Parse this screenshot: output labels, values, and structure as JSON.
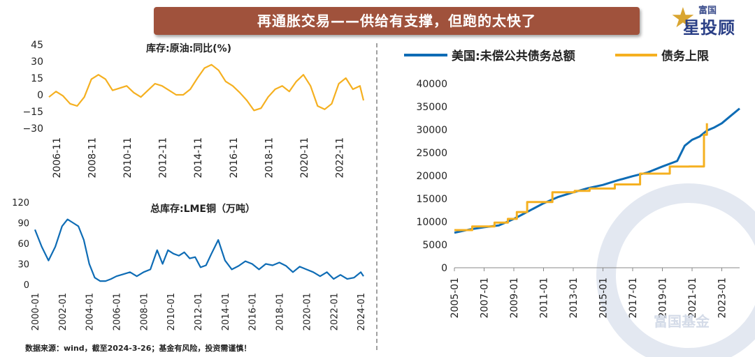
{
  "header": {
    "title": "再通胀交易——供给有支撑，但跑的太快了"
  },
  "logo": {
    "top": "富国",
    "main": "星投顾"
  },
  "footer": {
    "source": "数据来源：wind，截至2024-3-26；基金有风险，投资需谨慎！"
  },
  "watermark": {
    "text": "富国基金"
  },
  "colors": {
    "banner": "#a0523c",
    "orange": "#f5b020",
    "blue": "#0e6cb5"
  },
  "chart_data": [
    {
      "type": "line",
      "title": "库存:原油:同比(%)",
      "ylim": [
        -30,
        45
      ],
      "yticks": [
        "45",
        "30",
        "15",
        "0",
        "−15",
        "−30"
      ],
      "xticks": [
        "2006-11",
        "2008-11",
        "2010-11",
        "2012-11",
        "2014-11",
        "2016-11",
        "2018-11",
        "2020-11",
        "2022-11"
      ],
      "xlim": [
        2006.4,
        2024.2
      ],
      "series": [
        {
          "color": "#f5b020",
          "points": [
            [
              2006.4,
              -2
            ],
            [
              2006.8,
              3
            ],
            [
              2007.2,
              -1
            ],
            [
              2007.6,
              -8
            ],
            [
              2008.0,
              -10
            ],
            [
              2008.4,
              -2
            ],
            [
              2008.8,
              14
            ],
            [
              2009.2,
              18
            ],
            [
              2009.6,
              14
            ],
            [
              2010.0,
              4
            ],
            [
              2010.4,
              6
            ],
            [
              2010.8,
              8
            ],
            [
              2011.2,
              2
            ],
            [
              2011.6,
              -2
            ],
            [
              2012.0,
              4
            ],
            [
              2012.4,
              10
            ],
            [
              2012.8,
              8
            ],
            [
              2013.2,
              4
            ],
            [
              2013.6,
              0
            ],
            [
              2014.0,
              0
            ],
            [
              2014.4,
              5
            ],
            [
              2014.8,
              15
            ],
            [
              2015.2,
              24
            ],
            [
              2015.6,
              27
            ],
            [
              2016.0,
              22
            ],
            [
              2016.4,
              12
            ],
            [
              2016.8,
              8
            ],
            [
              2017.2,
              2
            ],
            [
              2017.6,
              -5
            ],
            [
              2018.0,
              -14
            ],
            [
              2018.4,
              -12
            ],
            [
              2018.8,
              -2
            ],
            [
              2019.2,
              5
            ],
            [
              2019.6,
              8
            ],
            [
              2020.0,
              3
            ],
            [
              2020.4,
              12
            ],
            [
              2020.8,
              18
            ],
            [
              2021.2,
              8
            ],
            [
              2021.6,
              -10
            ],
            [
              2022.0,
              -13
            ],
            [
              2022.4,
              -8
            ],
            [
              2022.8,
              10
            ],
            [
              2023.2,
              15
            ],
            [
              2023.6,
              5
            ],
            [
              2024.0,
              8
            ],
            [
              2024.2,
              -5
            ]
          ]
        }
      ]
    },
    {
      "type": "line",
      "title": "总库存:LME铜（万吨）",
      "ylim": [
        0,
        120
      ],
      "yticks": [
        "120",
        "90",
        "60",
        "30",
        "0"
      ],
      "xticks": [
        "2000-01",
        "2002-01",
        "2004-01",
        "2006-01",
        "2008-01",
        "2010-01",
        "2012-01",
        "2014-01",
        "2016-01",
        "2018-01",
        "2020-01",
        "2022-01",
        "2024-01"
      ],
      "xlim": [
        2000.0,
        2024.2
      ],
      "series": [
        {
          "color": "#0e6cb5",
          "points": [
            [
              2000.0,
              80
            ],
            [
              2000.5,
              55
            ],
            [
              2001.0,
              35
            ],
            [
              2001.5,
              55
            ],
            [
              2002.0,
              85
            ],
            [
              2002.4,
              95
            ],
            [
              2002.8,
              90
            ],
            [
              2003.2,
              85
            ],
            [
              2003.6,
              65
            ],
            [
              2004.0,
              30
            ],
            [
              2004.4,
              10
            ],
            [
              2004.8,
              5
            ],
            [
              2005.2,
              5
            ],
            [
              2005.6,
              8
            ],
            [
              2006.0,
              12
            ],
            [
              2006.5,
              15
            ],
            [
              2007.0,
              18
            ],
            [
              2007.5,
              12
            ],
            [
              2008.0,
              18
            ],
            [
              2008.5,
              22
            ],
            [
              2009.0,
              50
            ],
            [
              2009.4,
              30
            ],
            [
              2009.8,
              50
            ],
            [
              2010.2,
              45
            ],
            [
              2010.6,
              42
            ],
            [
              2011.0,
              47
            ],
            [
              2011.4,
              38
            ],
            [
              2011.8,
              40
            ],
            [
              2012.2,
              25
            ],
            [
              2012.6,
              28
            ],
            [
              2013.0,
              45
            ],
            [
              2013.5,
              65
            ],
            [
              2014.0,
              35
            ],
            [
              2014.5,
              22
            ],
            [
              2015.0,
              27
            ],
            [
              2015.5,
              34
            ],
            [
              2016.0,
              30
            ],
            [
              2016.5,
              22
            ],
            [
              2017.0,
              30
            ],
            [
              2017.5,
              28
            ],
            [
              2018.0,
              32
            ],
            [
              2018.5,
              27
            ],
            [
              2019.0,
              18
            ],
            [
              2019.5,
              26
            ],
            [
              2020.0,
              22
            ],
            [
              2020.5,
              18
            ],
            [
              2021.0,
              12
            ],
            [
              2021.5,
              18
            ],
            [
              2022.0,
              8
            ],
            [
              2022.5,
              14
            ],
            [
              2023.0,
              8
            ],
            [
              2023.5,
              10
            ],
            [
              2024.0,
              18
            ],
            [
              2024.2,
              12
            ]
          ]
        }
      ]
    },
    {
      "type": "line",
      "yticks": [
        "40000",
        "35000",
        "30000",
        "25000",
        "20000",
        "15000",
        "10000",
        "5000",
        "0"
      ],
      "ylim": [
        0,
        40000
      ],
      "xticks": [
        "2005-01",
        "2007-01",
        "2009-01",
        "2011-01",
        "2013-01",
        "2015-01",
        "2017-01",
        "2019-01",
        "2021-01",
        "2023-01"
      ],
      "xlim": [
        2005.0,
        2024.2
      ],
      "legend": "top",
      "series": [
        {
          "name": "美国:未偿公共债务总额",
          "color": "#0e6cb5",
          "points": [
            [
              2005.0,
              7600
            ],
            [
              2006.0,
              8300
            ],
            [
              2007.0,
              8800
            ],
            [
              2008.0,
              9200
            ],
            [
              2009.0,
              10600
            ],
            [
              2010.0,
              12300
            ],
            [
              2011.0,
              14000
            ],
            [
              2012.0,
              15400
            ],
            [
              2013.0,
              16400
            ],
            [
              2014.0,
              17300
            ],
            [
              2015.0,
              18000
            ],
            [
              2016.0,
              19000
            ],
            [
              2017.0,
              19900
            ],
            [
              2018.0,
              20700
            ],
            [
              2019.0,
              22000
            ],
            [
              2020.0,
              23200
            ],
            [
              2020.5,
              26500
            ],
            [
              2021.0,
              27800
            ],
            [
              2021.5,
              28500
            ],
            [
              2022.0,
              29800
            ],
            [
              2022.5,
              30500
            ],
            [
              2023.0,
              31400
            ],
            [
              2023.6,
              33000
            ],
            [
              2024.2,
              34600
            ]
          ]
        },
        {
          "name": "债务上限",
          "color": "#f5b020",
          "points": [
            [
              2005.0,
              8184
            ],
            [
              2006.2,
              8184
            ],
            [
              2006.2,
              8965
            ],
            [
              2007.7,
              8965
            ],
            [
              2007.7,
              9815
            ],
            [
              2008.6,
              9815
            ],
            [
              2008.6,
              10615
            ],
            [
              2009.2,
              10615
            ],
            [
              2009.2,
              12104
            ],
            [
              2009.9,
              12104
            ],
            [
              2009.9,
              14294
            ],
            [
              2011.6,
              14294
            ],
            [
              2011.6,
              16394
            ],
            [
              2013.1,
              16394
            ],
            [
              2013.1,
              16699
            ],
            [
              2014.1,
              16699
            ],
            [
              2014.1,
              17212
            ],
            [
              2015.8,
              17212
            ],
            [
              2015.8,
              18113
            ],
            [
              2017.5,
              18113
            ],
            [
              2017.5,
              20456
            ],
            [
              2019.5,
              20456
            ],
            [
              2019.5,
              21988
            ],
            [
              2020.8,
              21988
            ],
            [
              2020.8,
              22000
            ],
            [
              2021.8,
              22000
            ],
            [
              2021.8,
              28900
            ],
            [
              2022.0,
              28900
            ],
            [
              2022.0,
              31400
            ]
          ]
        }
      ]
    }
  ]
}
